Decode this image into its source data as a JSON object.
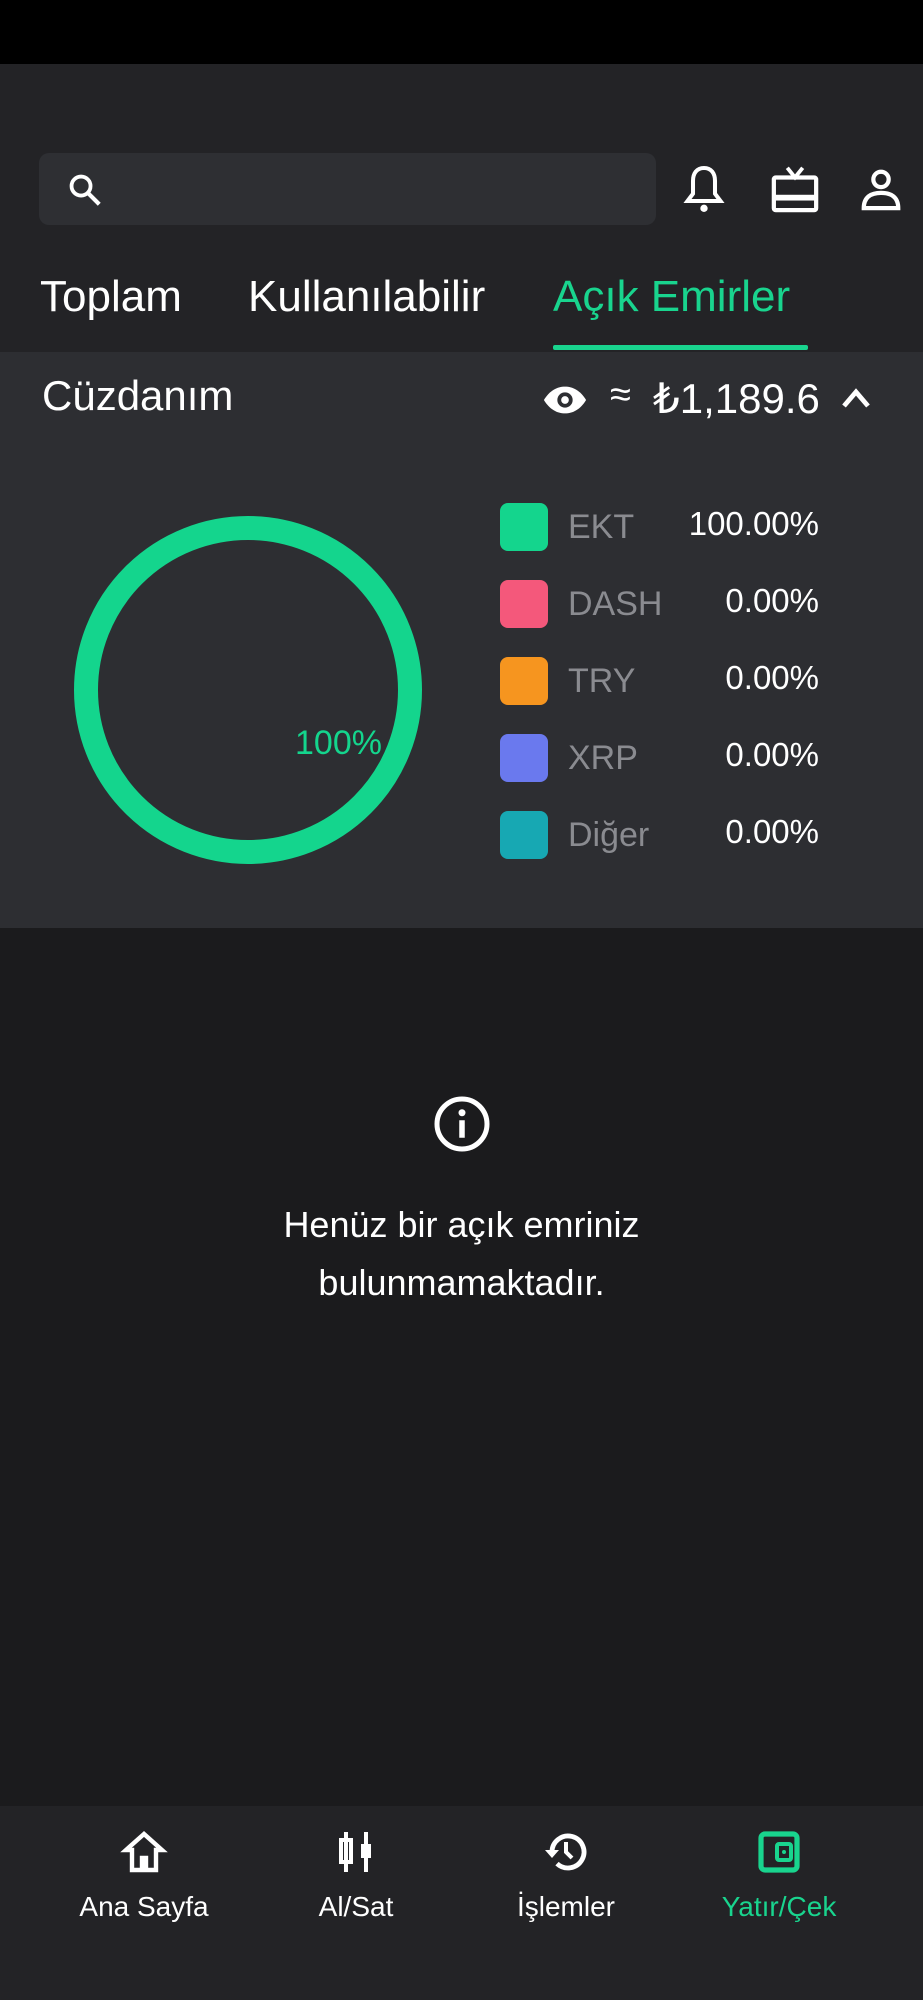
{
  "header": {
    "search_placeholder": "",
    "icons": [
      "search-icon",
      "bell-icon",
      "gift-icon",
      "user-icon"
    ]
  },
  "tabs": [
    {
      "label": "Toplam",
      "active": false
    },
    {
      "label": "Kullanılabilir",
      "active": false
    },
    {
      "label": "Açık Emirler",
      "active": true
    }
  ],
  "wallet": {
    "title": "Cüzdanım",
    "approx": "≈",
    "balance": "₺1,189.6",
    "donut_label": "100%",
    "legend": [
      {
        "label": "EKT",
        "value": "100.00%",
        "color": "#14d58d"
      },
      {
        "label": "DASH",
        "value": "0.00%",
        "color": "#f4587b"
      },
      {
        "label": "TRY",
        "value": "0.00%",
        "color": "#f6951f"
      },
      {
        "label": "XRP",
        "value": "0.00%",
        "color": "#6a79ee"
      },
      {
        "label": "Diğer",
        "value": "0.00%",
        "color": "#17a8b3"
      }
    ]
  },
  "empty": {
    "line1": "Henüz bir açık emriniz",
    "line2": "bulunmamaktadır."
  },
  "nav": [
    {
      "label": "Ana Sayfa"
    },
    {
      "label": "Al/Sat"
    },
    {
      "label": "İşlemler"
    },
    {
      "label": "Yatır/Çek",
      "active": true
    }
  ],
  "colors": {
    "accent": "#19d48e",
    "header_bg": "#232326",
    "panel_bg": "#2d2e32",
    "bg": "#1b1b1d"
  }
}
